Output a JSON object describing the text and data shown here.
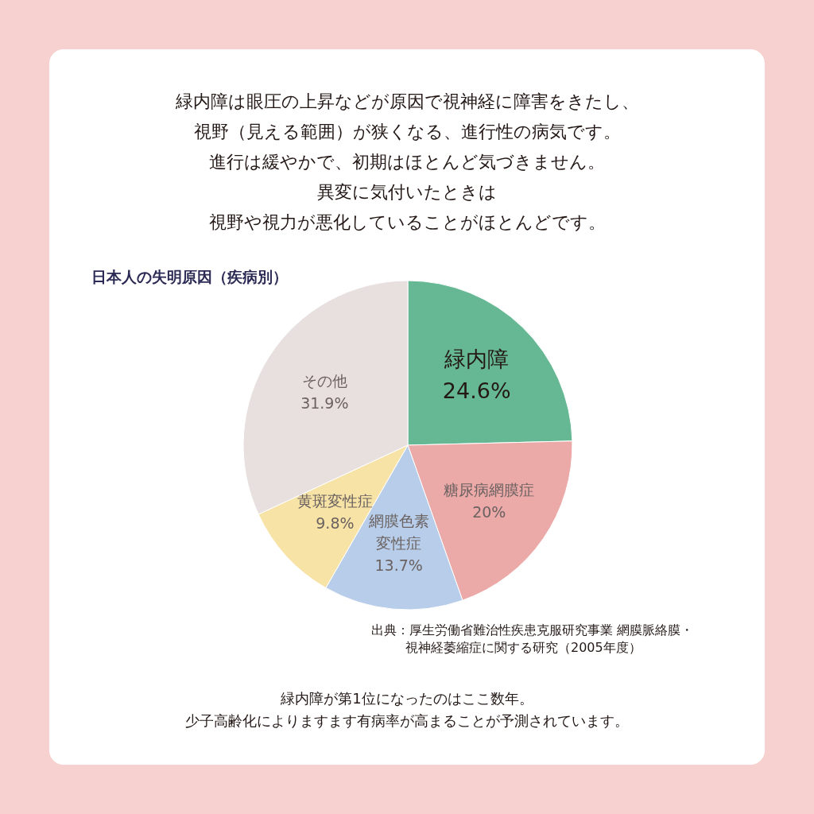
{
  "chart_data": {
    "type": "pie",
    "title": "日本人の失明原因（疾病別）",
    "categories": [
      "緑内障",
      "糖尿病網膜症",
      "網膜色素変性症",
      "黄斑変性症",
      "その他"
    ],
    "values": [
      24.6,
      20,
      13.7,
      9.8,
      31.9
    ],
    "value_labels": [
      "24.6%",
      "20%",
      "13.7%",
      "9.8%",
      "31.9%"
    ],
    "colors": [
      "#66b894",
      "#eba9a8",
      "#b7cde9",
      "#f7e3a6",
      "#e8e0df"
    ],
    "annotations": [
      "緑内障は眼圧の上昇などが原因で視神経に障害をきたし、",
      "視野（見える範囲）が狭くなる、進行性の病気です。",
      "進行は緩やかで、初期はほとんど気づきません。",
      "異変に気付いたときは",
      "視野や視力が悪化していることがほとんどです。",
      "出典：厚生労働省難治性疾患克服研究事業 網膜脈絡膜・",
      "視神経萎縮症に関する研究（2005年度）",
      "緑内障が第1位になったのはここ数年。",
      "少子高齢化によりますます有病率が高まることが予測されています。"
    ]
  }
}
